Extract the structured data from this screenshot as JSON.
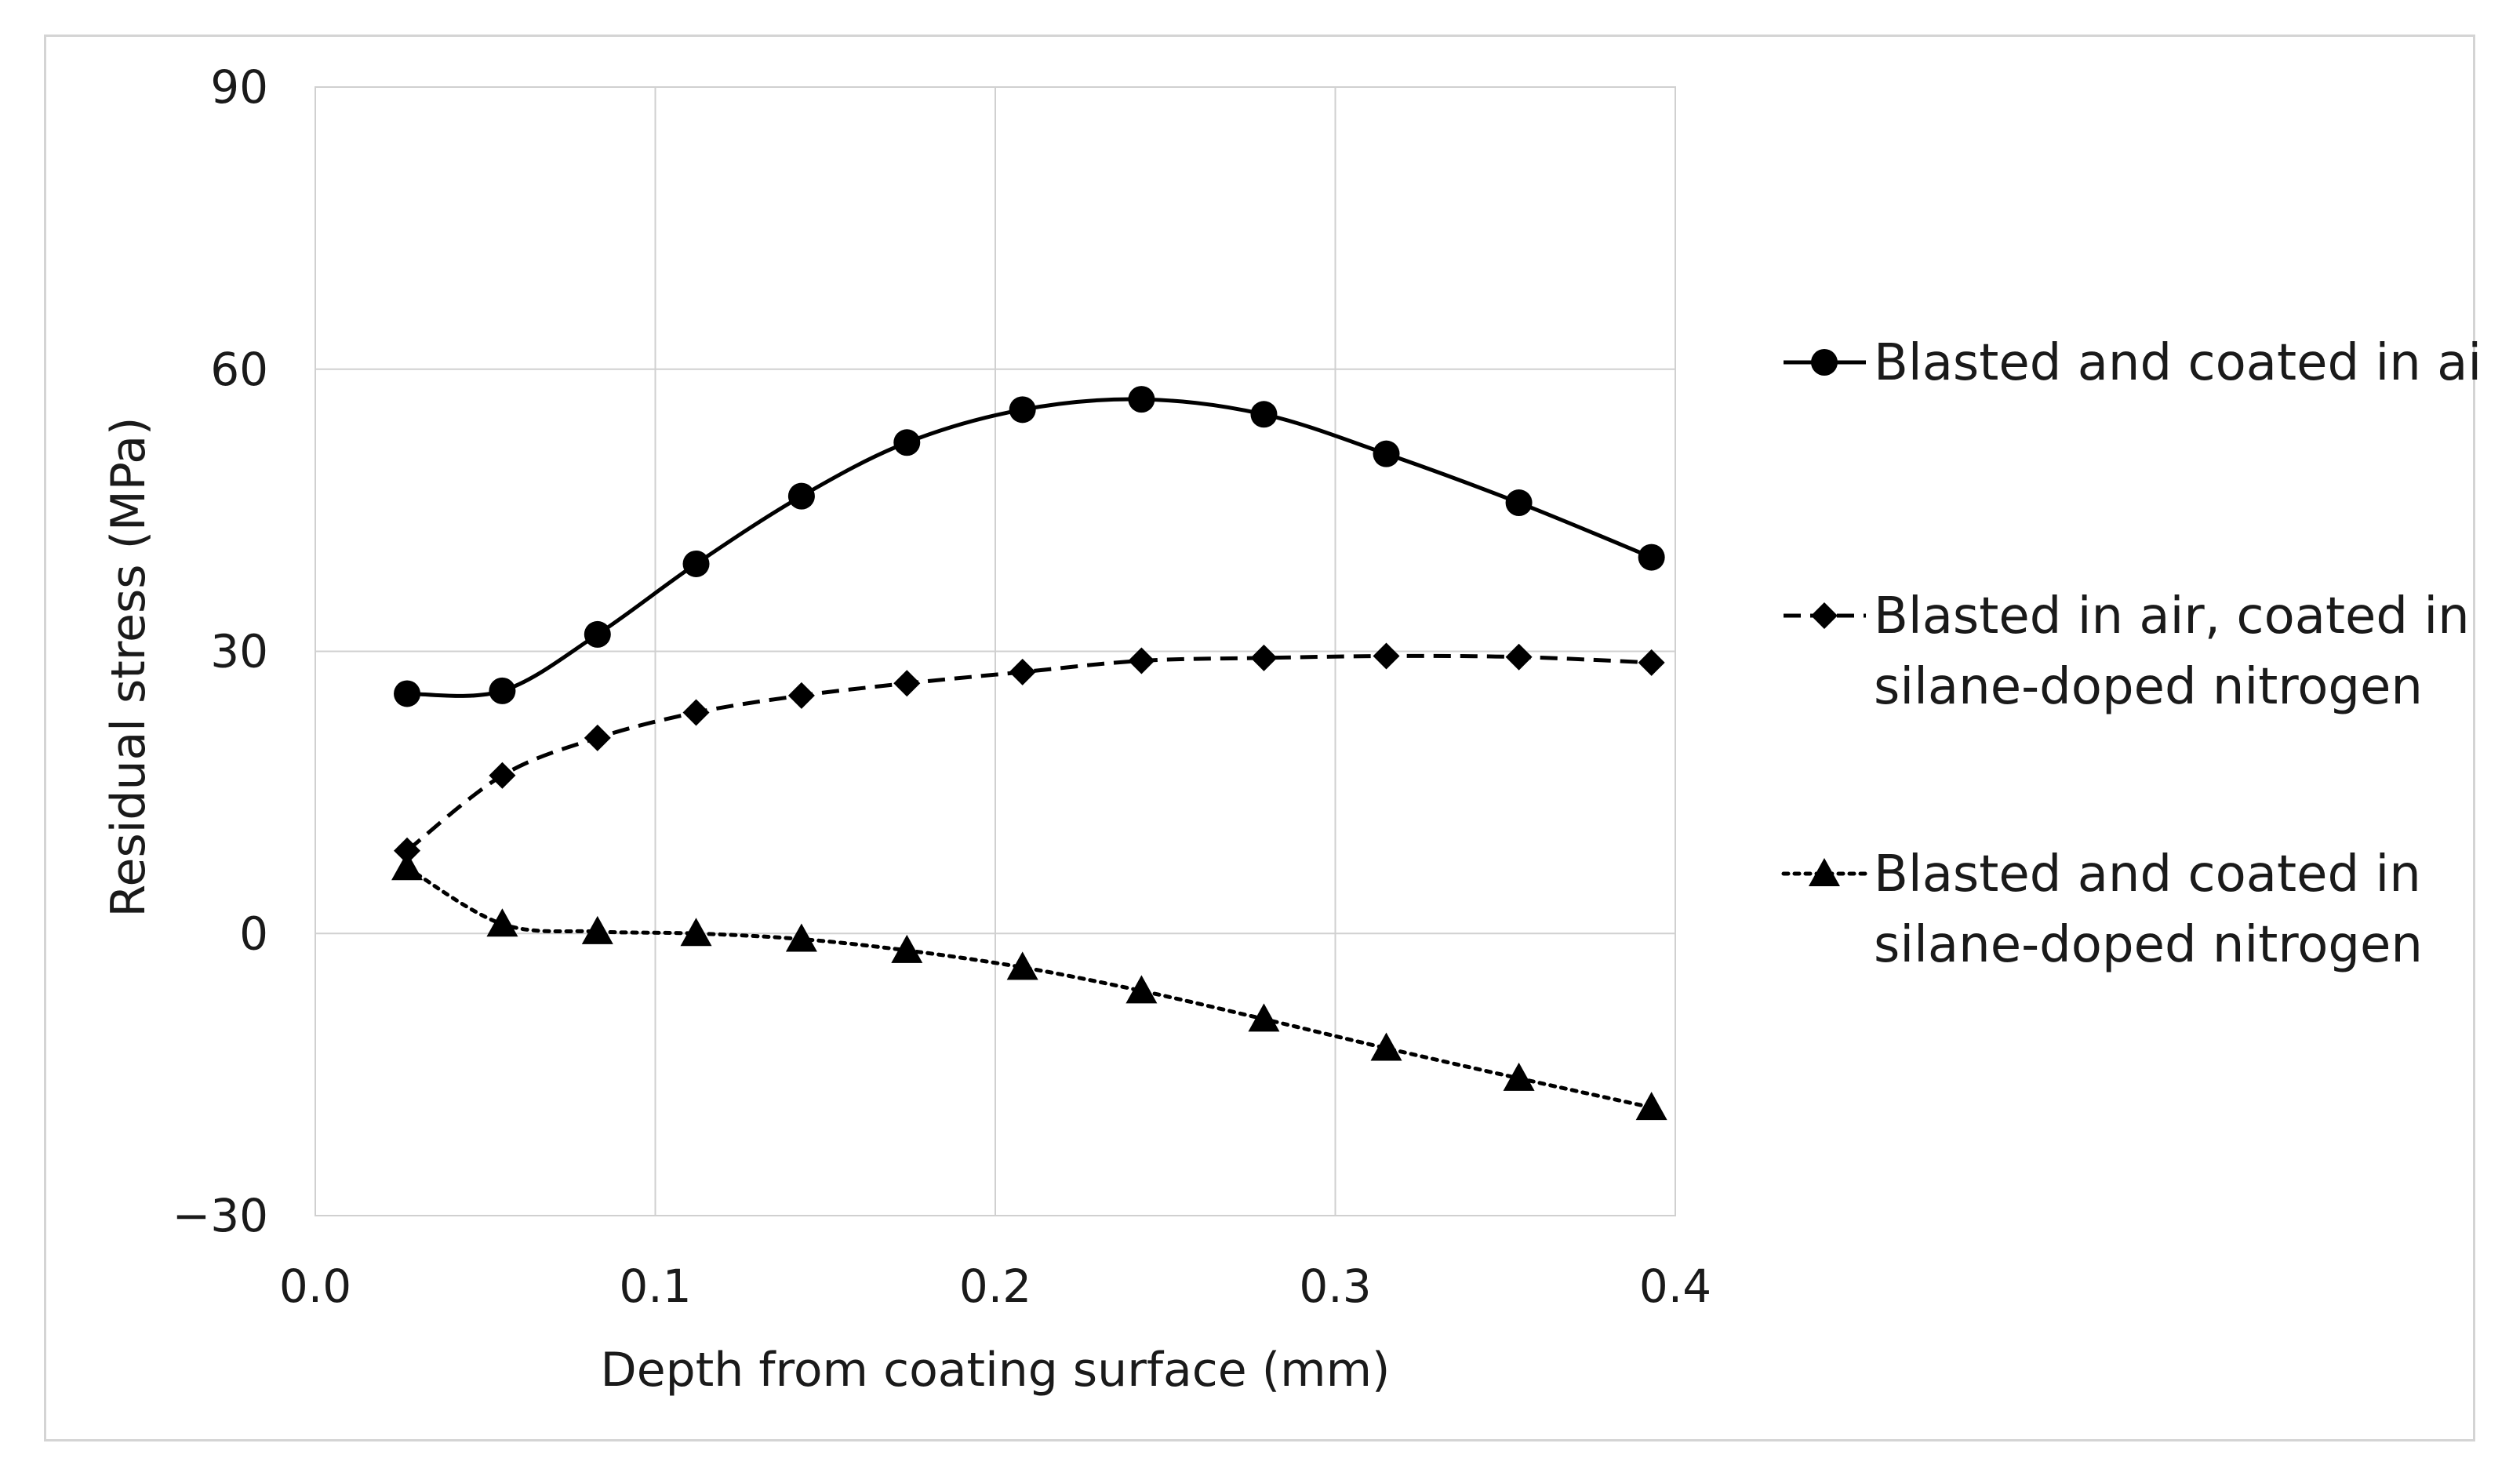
{
  "chart_data": {
    "type": "line",
    "title": "",
    "xlabel": "Depth from coating surface (mm)",
    "ylabel": "Residual stress (MPa)",
    "xlim": [
      0.0,
      0.4
    ],
    "ylim": [
      -30,
      90
    ],
    "xticks": [
      "0.0",
      "0.1",
      "0.2",
      "0.3",
      "0.4"
    ],
    "yticks": [
      "-30",
      "0",
      "30",
      "60",
      "90"
    ],
    "grid": true,
    "legend_position": "right",
    "series": [
      {
        "name": "Blasted and coated in air",
        "legend_lines": [
          "Blasted and coated in air"
        ],
        "marker": "circle",
        "line_style": "solid",
        "x": [
          0.027,
          0.055,
          0.083,
          0.112,
          0.143,
          0.174,
          0.208,
          0.243,
          0.279,
          0.315,
          0.354,
          0.393
        ],
        "y": [
          25.5,
          25.8,
          31.8,
          39.3,
          46.5,
          52.2,
          55.7,
          56.8,
          55.2,
          51.0,
          45.8,
          40.0
        ]
      },
      {
        "name": "Blasted in air, coated in silane-doped nitrogen",
        "legend_lines": [
          "Blasted in air, coated in",
          "silane-doped nitrogen"
        ],
        "marker": "diamond",
        "line_style": "dashed",
        "x": [
          0.027,
          0.055,
          0.083,
          0.112,
          0.143,
          0.174,
          0.208,
          0.243,
          0.279,
          0.315,
          0.354,
          0.393
        ],
        "y": [
          8.8,
          16.8,
          20.8,
          23.5,
          25.3,
          26.6,
          27.8,
          29.0,
          29.3,
          29.5,
          29.4,
          28.8
        ]
      },
      {
        "name": "Blasted and coated in silane-doped nitrogen",
        "legend_lines": [
          "Blasted and coated in",
          "silane-doped nitrogen"
        ],
        "marker": "triangle",
        "line_style": "dotted",
        "x": [
          0.027,
          0.055,
          0.083,
          0.112,
          0.143,
          0.174,
          0.208,
          0.243,
          0.279,
          0.315,
          0.354,
          0.393
        ],
        "y": [
          7.0,
          1.0,
          0.2,
          0.0,
          -0.6,
          -1.8,
          -3.6,
          -6.1,
          -9.1,
          -12.2,
          -15.4,
          -18.5
        ]
      }
    ]
  }
}
